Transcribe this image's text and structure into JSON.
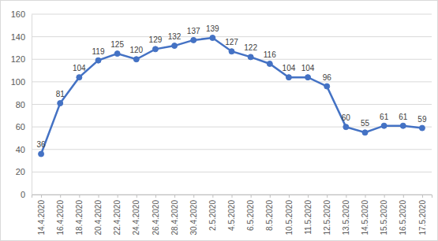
{
  "chart_data": {
    "type": "line",
    "categories": [
      "14.4.2020",
      "16.4.2020",
      "18.4.2020",
      "20.4.2020",
      "22.4.2020",
      "24.4.2020",
      "26.4.2020",
      "28.4.2020",
      "30.4.2020",
      "2.5.2020",
      "4.5.2020",
      "6.5.2020",
      "8.5.2020",
      "10.5.2020",
      "11.5.2020",
      "12.5.2020",
      "13.5.2020",
      "14.5.2020",
      "15.5.2020",
      "16.5.2020",
      "17.5.2020"
    ],
    "values": [
      36,
      81,
      104,
      119,
      125,
      120,
      129,
      132,
      137,
      139,
      127,
      122,
      116,
      104,
      104,
      96,
      60,
      55,
      61,
      61,
      59
    ],
    "color": "#4472c4",
    "marker": "circle",
    "ylim": [
      0,
      160
    ],
    "yticks": [
      0,
      20,
      40,
      60,
      80,
      100,
      120,
      140,
      160
    ],
    "grid": true,
    "data_labels": true
  }
}
